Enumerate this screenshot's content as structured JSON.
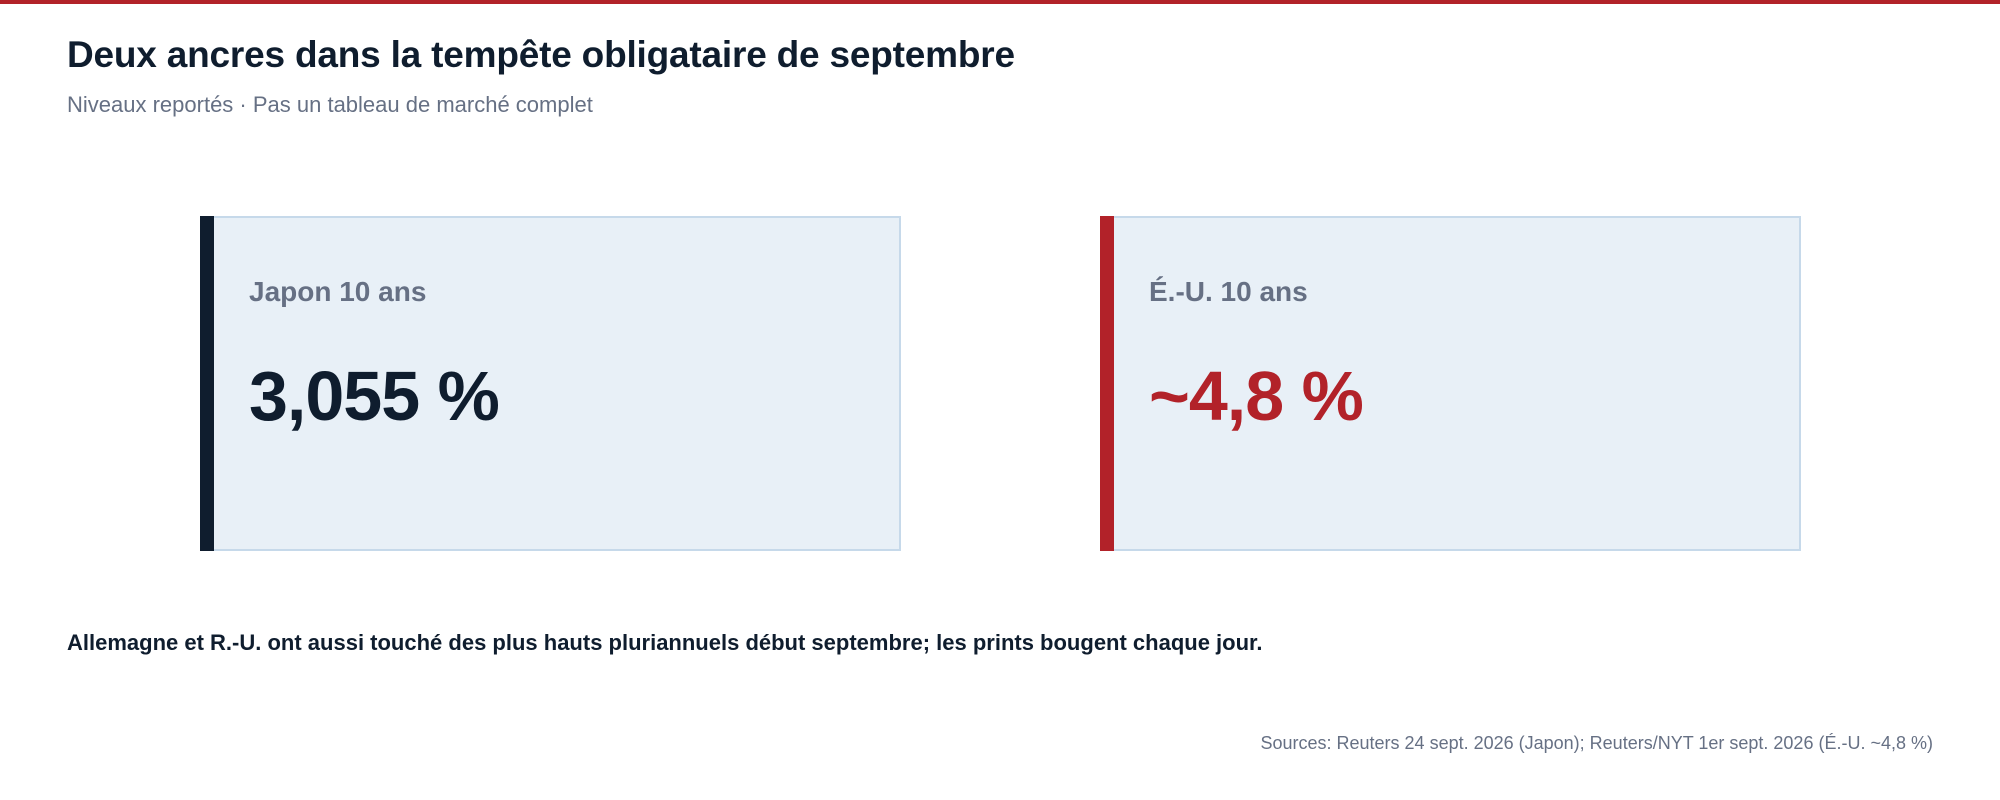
{
  "header": {
    "title": "Deux ancres dans la tempête obligataire de septembre",
    "subtitle": "Niveaux reportés · Pas un tableau de marché complet"
  },
  "cards": [
    {
      "label": "Japon 10 ans",
      "value": "3,055 %",
      "accent_color": "#0f1d2e",
      "value_color": "#0f1d2e"
    },
    {
      "label": "É.-U. 10 ans",
      "value": "~4,8 %",
      "accent_color": "#b22229",
      "value_color": "#b22229"
    }
  ],
  "note": "Allemagne et R.-U. ont aussi touché des plus hauts pluriannuels début septembre; les prints bougent chaque jour.",
  "footer": {
    "sources": "Sources: Reuters 24 sept. 2026 (Japon); Reuters/NYT 1er sept. 2026 (É.-U. ~4,8 %)"
  },
  "colors": {
    "brand_red": "#b22229",
    "navy": "#0f1d2e",
    "muted_text": "#667084",
    "card_background": "#e8f0f7",
    "card_border": "#c6d9ea"
  }
}
